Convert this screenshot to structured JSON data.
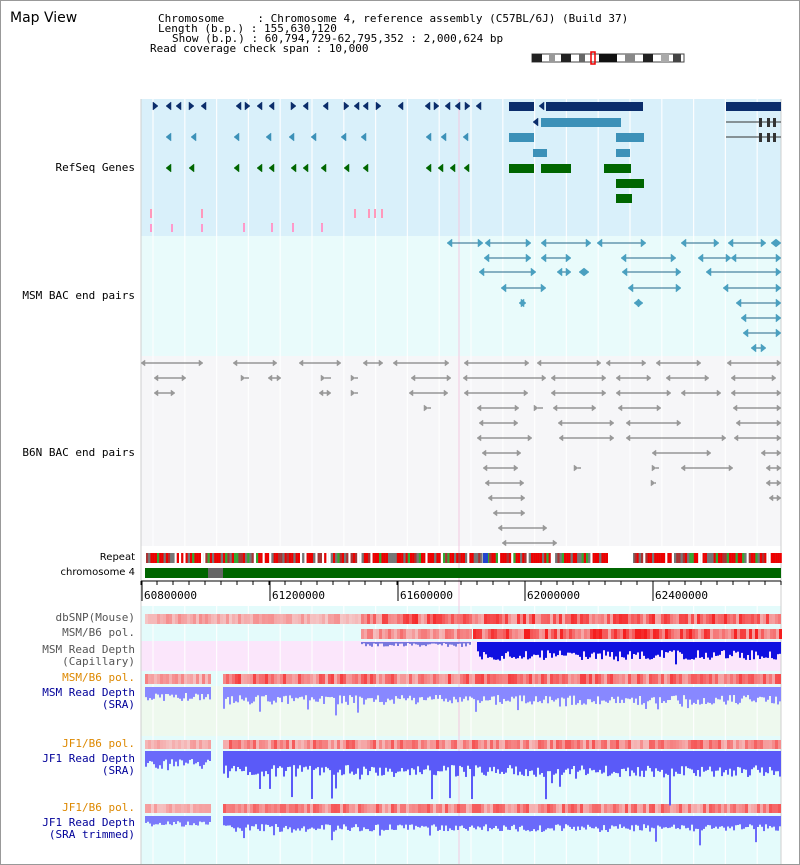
{
  "app": {
    "title": "Map View"
  },
  "header": {
    "chromosome_label": "Chromosome     : ",
    "chromosome_value": "Chromosome 4, reference assembly (C57BL/6J) (Build 37)",
    "length_label": "Length (b.p.) : ",
    "length_value": "155,630,120",
    "show_label": "Show (b.p.) : ",
    "show_value": "60,794,729-62,795,352 : 2,000,624 bp",
    "coverage_label": "Read coverage check span : ",
    "coverage_value": "10,000"
  },
  "tracks": {
    "refseq": "RefSeq Genes",
    "msm_bac": "MSM BAC end pairs",
    "b6n_bac": "B6N BAC end pairs",
    "repeat": "Repeat",
    "chromosome": "chromosome 4",
    "dbsnp": "dbSNP(Mouse)",
    "msm_b6_pol_1": "MSM/B6 pol.",
    "msm_depth_cap_1": "MSM Read Depth",
    "msm_depth_cap_2": "(Capillary)",
    "msm_b6_pol_2": "MSM/B6 pol.",
    "msm_depth_sra_1": "MSM Read Depth",
    "msm_depth_sra_2": "(SRA)",
    "jf1_b6_pol_1": "JF1/B6 pol.",
    "jf1_depth_sra_1": "JF1 Read Depth",
    "jf1_depth_sra_2": "(SRA)",
    "jf1_b6_pol_2": "JF1/B6 pol.",
    "jf1_depth_trim_1": "JF1 Read Depth",
    "jf1_depth_trim_2": "(SRA trimmed)"
  },
  "ruler": {
    "ticks": [
      "60800000",
      "61200000",
      "61600000",
      "62000000",
      "62400000"
    ]
  },
  "colors": {
    "refseq_bg": "#d9f0fa",
    "msm_bac_bg": "#e9fbfb",
    "b6n_bg": "#f6f6f8",
    "refseq_label": "#000099",
    "msm_bac_label": "#226688",
    "b6n_label": "#777777",
    "pol_label_msm": "#dd8800",
    "depth_label": "#000099",
    "gene_navy": "#0b2d6b",
    "gene_blue": "#3c91b8",
    "gene_green": "#006600",
    "chromosome_green": "#006600",
    "depth_blue": "#6e6efc"
  }
}
